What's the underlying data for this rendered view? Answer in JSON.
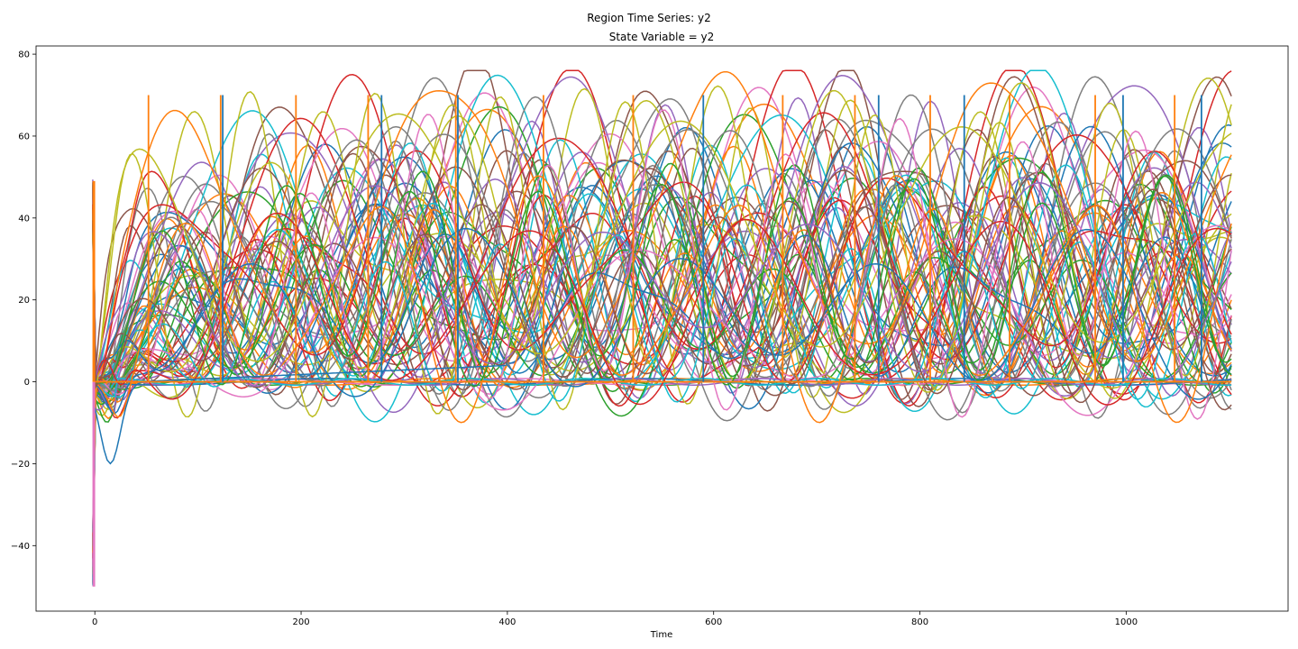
{
  "figure": {
    "suptitle": "Region Time Series: y2"
  },
  "chart_data": {
    "type": "line",
    "title": "State Variable = y2",
    "xlabel": "Time",
    "ylabel": "",
    "xlim": [
      -57,
      1157
    ],
    "ylim": [
      -56,
      82
    ],
    "xticks": [
      0,
      200,
      400,
      600,
      800,
      1000
    ],
    "yticks": [
      -40,
      -20,
      0,
      20,
      40,
      60,
      80
    ],
    "xtick_labels": [
      "0",
      "200",
      "400",
      "600",
      "800",
      "1000"
    ],
    "ytick_labels": [
      "−40",
      "−20",
      "0",
      "20",
      "40",
      "60",
      "80"
    ],
    "grid": false,
    "legend": "none",
    "t_end": 1102,
    "n_series": 76,
    "series_description_note": "76 overlapping region traces oscillating roughly between -5 and 75 after an initial transient near t=0 spanning -50..50; several traces show spikes to 70.",
    "spikes": [
      {
        "x": 52,
        "y": 70,
        "color": "#ff7f0e"
      },
      {
        "x": 122,
        "y": 70,
        "color": "#ff7f0e"
      },
      {
        "x": 124,
        "y": 70,
        "color": "#1f77b4"
      },
      {
        "x": 195,
        "y": 70,
        "color": "#ff7f0e"
      },
      {
        "x": 265,
        "y": 70,
        "color": "#ff7f0e"
      },
      {
        "x": 278,
        "y": 70,
        "color": "#1f77b4"
      },
      {
        "x": 350,
        "y": 70,
        "color": "#ff7f0e"
      },
      {
        "x": 352,
        "y": 70,
        "color": "#1f77b4"
      },
      {
        "x": 435,
        "y": 70,
        "color": "#ff7f0e"
      },
      {
        "x": 522,
        "y": 70,
        "color": "#ff7f0e"
      },
      {
        "x": 590,
        "y": 70,
        "color": "#1f77b4"
      },
      {
        "x": 667,
        "y": 70,
        "color": "#ff7f0e"
      },
      {
        "x": 737,
        "y": 70,
        "color": "#ff7f0e"
      },
      {
        "x": 760,
        "y": 70,
        "color": "#1f77b4"
      },
      {
        "x": 810,
        "y": 70,
        "color": "#ff7f0e"
      },
      {
        "x": 843,
        "y": 70,
        "color": "#1f77b4"
      },
      {
        "x": 887,
        "y": 70,
        "color": "#ff7f0e"
      },
      {
        "x": 970,
        "y": 70,
        "color": "#ff7f0e"
      },
      {
        "x": 997,
        "y": 70,
        "color": "#1f77b4"
      },
      {
        "x": 1047,
        "y": 70,
        "color": "#ff7f0e"
      },
      {
        "x": 1073,
        "y": 70,
        "color": "#1f77b4"
      }
    ],
    "colors": [
      "#1f77b4",
      "#ff7f0e",
      "#2ca02c",
      "#d62728",
      "#9467bd",
      "#8c564b",
      "#e377c2",
      "#7f7f7f",
      "#bcbd22",
      "#17becf"
    ]
  }
}
